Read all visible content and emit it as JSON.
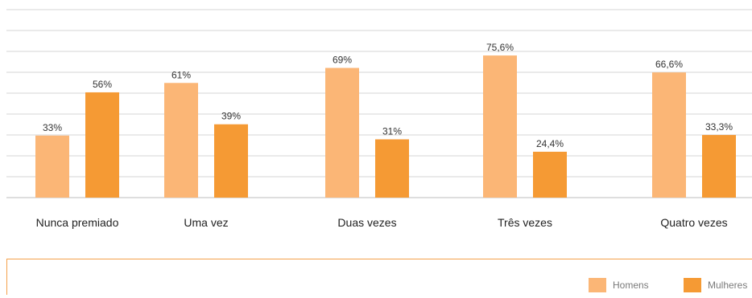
{
  "chart_data": {
    "type": "bar",
    "categories": [
      "Nunca premiado",
      "Uma vez",
      "Duas vezes",
      "Três vezes",
      "Quatro vezes"
    ],
    "series": [
      {
        "name": "Homens",
        "color": "#fbb676",
        "values": [
          33,
          61,
          69,
          75.6,
          66.6
        ],
        "labels": [
          "33%",
          "61%",
          "69%",
          "75,6%",
          "66,6%"
        ]
      },
      {
        "name": "Mulheres",
        "color": "#f59a34",
        "values": [
          56,
          39,
          31,
          24.4,
          33.3
        ],
        "labels": [
          "56%",
          "39%",
          "31%",
          "24,4%",
          "33,3%"
        ]
      }
    ],
    "ylim": [
      0,
      100
    ],
    "grid": true,
    "legend_position": "bottom-right"
  }
}
